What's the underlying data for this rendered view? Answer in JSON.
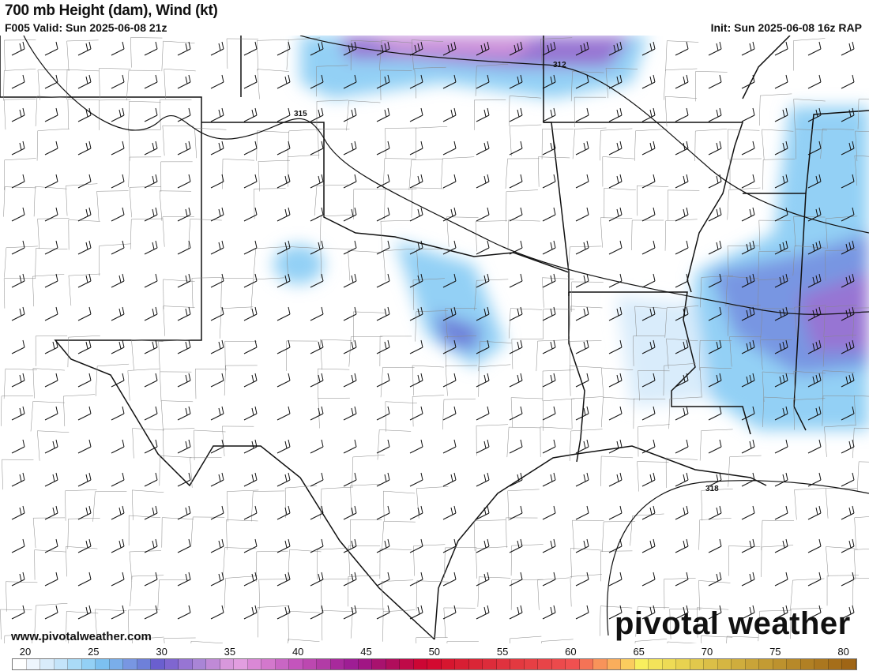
{
  "header": {
    "title": "700 mb Height (dam), Wind (kt)",
    "valid": "F005 Valid: Sun 2025-06-08 21z",
    "init": "Init: Sun 2025-06-08 16z RAP"
  },
  "map": {
    "contour_labels": [
      "312",
      "315",
      "318"
    ],
    "fill_colors": {
      "light_blue": "#aadbf7",
      "blue": "#7cc0f0",
      "indigo": "#7896e2",
      "purple": "#9775d3",
      "pink": "#d898dc"
    }
  },
  "footer": {
    "website": "www.pivotalweather.com",
    "logo": "pivotal weather"
  },
  "colorbar": {
    "labels": [
      "20",
      "25",
      "30",
      "35",
      "40",
      "45",
      "50",
      "55",
      "60",
      "65",
      "70",
      "75",
      "80"
    ],
    "colors": [
      "#ffffff",
      "#eef5fd",
      "#d9ecfb",
      "#c4e4fa",
      "#aadbf7",
      "#93d0f5",
      "#7cc0f0",
      "#7aaeea",
      "#7896e2",
      "#6e80d9",
      "#6a5fcf",
      "#7f66d0",
      "#9775d3",
      "#a985d6",
      "#c08ad7",
      "#d898dc",
      "#e29ee0",
      "#da88d6",
      "#d378cc",
      "#c966c4",
      "#c454bc",
      "#bc48b0",
      "#b23ca6",
      "#a82a9c",
      "#9e1e94",
      "#a11684",
      "#a8126e",
      "#b00e5c",
      "#bf0a48",
      "#cc0634",
      "#d30a30",
      "#d6162f",
      "#d81e33",
      "#da2636",
      "#dd2c3a",
      "#e0323e",
      "#e33940",
      "#e63f44",
      "#e84448",
      "#ec4a4c",
      "#f05050",
      "#f47356",
      "#f8935a",
      "#faae5c",
      "#fbcc5e",
      "#f8ee5e",
      "#f3e35a",
      "#eedb55",
      "#e8d250",
      "#e1c84c",
      "#dbbf47",
      "#d5b642",
      "#cfad3d",
      "#c9a438",
      "#c39b33",
      "#bd922e",
      "#b78929",
      "#b18024",
      "#ab771f",
      "#a56e1a",
      "#9f6515"
    ]
  }
}
